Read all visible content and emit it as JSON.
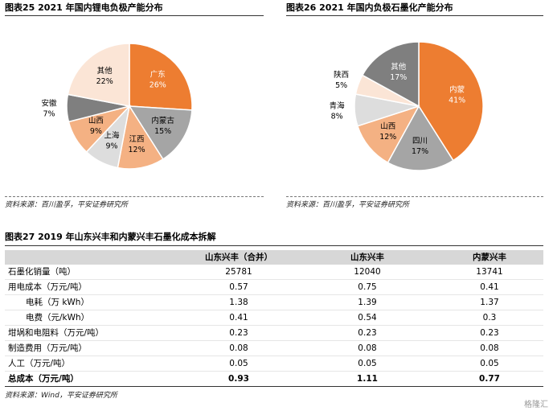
{
  "chart_left": {
    "title": "图表25    2021 年国内锂电负极产能分布",
    "source": "资料来源：百川盈孚，平安证券研究所",
    "chart_data": {
      "type": "pie",
      "title": "2021 年国内锂电负极产能分布",
      "slices": [
        {
          "label": "广东",
          "value": 26,
          "pct": "26%",
          "color": "#ED7D31"
        },
        {
          "label": "内蒙古",
          "value": 15,
          "pct": "15%",
          "color": "#A5A5A5"
        },
        {
          "label": "江西",
          "value": 12,
          "pct": "12%",
          "color": "#F4B183"
        },
        {
          "label": "上海",
          "value": 9,
          "pct": "9%",
          "color": "#DDDDDD"
        },
        {
          "label": "山西",
          "value": 9,
          "pct": "9%",
          "color": "#F4B183"
        },
        {
          "label": "安徽",
          "value": 7,
          "pct": "7%",
          "color": "#7F7F7F"
        },
        {
          "label": "其他",
          "value": 22,
          "pct": "22%",
          "color": "#FBE5D6"
        }
      ]
    }
  },
  "chart_right": {
    "title": "图表26    2021 年国内负极石墨化产能分布",
    "source": "资料来源：百川盈孚，平安证券研究所",
    "chart_data": {
      "type": "pie",
      "title": "2021 年国内负极石墨化产能分布",
      "slices": [
        {
          "label": "内蒙",
          "value": 41,
          "pct": "41%",
          "color": "#ED7D31"
        },
        {
          "label": "四川",
          "value": 17,
          "pct": "17%",
          "color": "#A5A5A5"
        },
        {
          "label": "山西",
          "value": 12,
          "pct": "12%",
          "color": "#F4B183"
        },
        {
          "label": "青海",
          "value": 8,
          "pct": "8%",
          "color": "#DDDDDD"
        },
        {
          "label": "陕西",
          "value": 5,
          "pct": "5%",
          "color": "#FBE5D6"
        },
        {
          "label": "其他",
          "value": 17,
          "pct": "17%",
          "color": "#7F7F7F"
        }
      ]
    }
  },
  "table": {
    "title": "图表27    2019 年山东兴丰和内蒙兴丰石墨化成本拆解",
    "columns": [
      "",
      "山东兴丰（合并）",
      "山东兴丰",
      "内蒙兴丰"
    ],
    "rows": [
      {
        "label": "石墨化销量（吨）",
        "values": [
          "25781",
          "12040",
          "13741"
        ]
      },
      {
        "label": "用电成本（万元/吨）",
        "values": [
          "0.57",
          "0.75",
          "0.41"
        ]
      },
      {
        "label": "电耗（万 kWh）",
        "values": [
          "1.38",
          "1.39",
          "1.37"
        ]
      },
      {
        "label": "电费（元/kWh）",
        "values": [
          "0.41",
          "0.54",
          "0.3"
        ]
      },
      {
        "label": "坩埚和电阻料（万元/吨）",
        "values": [
          "0.23",
          "0.23",
          "0.23"
        ]
      },
      {
        "label": "制造费用（万元/吨）",
        "values": [
          "0.08",
          "0.08",
          "0.08"
        ]
      },
      {
        "label": "人工（万元/吨）",
        "values": [
          "0.05",
          "0.05",
          "0.05"
        ]
      },
      {
        "label": "总成本（万元/吨）",
        "values": [
          "0.93",
          "1.11",
          "0.77"
        ]
      }
    ],
    "source": "资料来源：Wind，平安证券研究所"
  },
  "watermark": "格隆汇"
}
